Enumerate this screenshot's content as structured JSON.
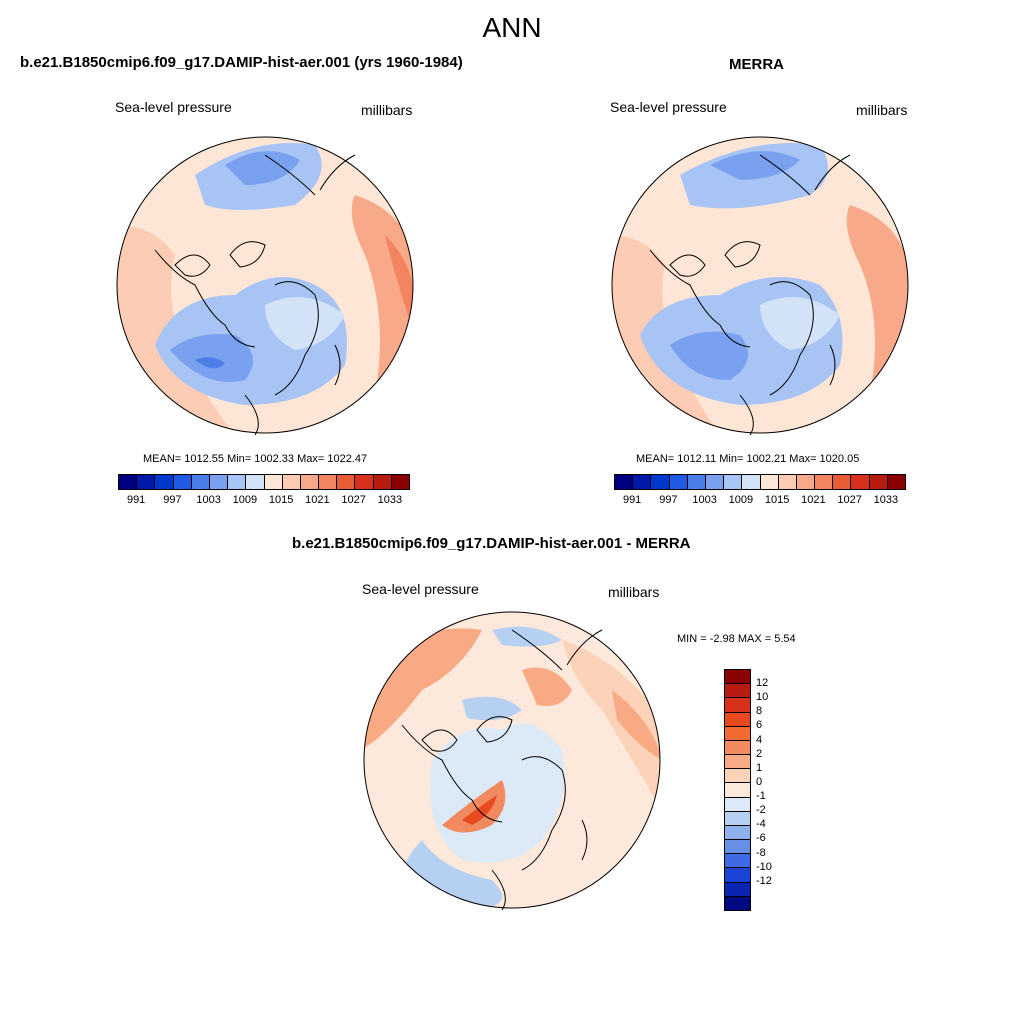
{
  "figure": {
    "title": "ANN"
  },
  "panels": [
    {
      "title": "b.e21.B1850cmip6.f09_g17.DAMIP-hist-aer.001 (yrs 1960-1984)",
      "left_label": "Sea-level pressure",
      "right_label": "millibars",
      "stats": "MEAN= 1012.55  Min= 1002.33  Max= 1022.47"
    },
    {
      "title": "MERRA",
      "left_label": "Sea-level pressure",
      "right_label": "millibars",
      "stats": "MEAN= 1012.11  Min= 1002.21  Max= 1020.05"
    },
    {
      "title": "b.e21.B1850cmip6.f09_g17.DAMIP-hist-aer.001 - MERRA",
      "left_label": "Sea-level pressure",
      "right_label": "millibars",
      "stats": "MIN =  -2.98 MAX =   5.54"
    }
  ],
  "colorbars": {
    "absolute": {
      "colors": [
        "#000080",
        "#0019a8",
        "#0038cc",
        "#1f5be6",
        "#4d7ee8",
        "#7aa0f0",
        "#a8c4f5",
        "#d3e3f7",
        "#fde6d6",
        "#fcccb4",
        "#f8a98a",
        "#f2845f",
        "#e85c35",
        "#d7301b",
        "#b81c10",
        "#8b0000"
      ],
      "tick_labels": [
        "991",
        "997",
        "1003",
        "1009",
        "1015",
        "1021",
        "1027",
        "1033"
      ]
    },
    "difference": {
      "colors": [
        "#8b0000",
        "#b81c10",
        "#d7301b",
        "#e84a20",
        "#f26a30",
        "#f28a5f",
        "#f8aa85",
        "#fcd2b8",
        "#fde9dc",
        "#dceaf8",
        "#b6d0f2",
        "#8fb1ec",
        "#6690e6",
        "#3f6ae6",
        "#1a44d8",
        "#0a26b0",
        "#000a80"
      ],
      "tick_labels": [
        "12",
        "10",
        "8",
        "6",
        "4",
        "2",
        "1",
        "0",
        "-1",
        "-2",
        "-4",
        "-6",
        "-8",
        "-10",
        "-12"
      ]
    }
  },
  "map_colors": {
    "ocean_light_blue": "#d3e3f7",
    "light_blue": "#a8c4f5",
    "mid_blue": "#7aa0f0",
    "dark_blue": "#4d7ee8",
    "peach": "#fde6d6",
    "light_orange": "#fcccb4",
    "orange": "#f8a98a",
    "dark_orange": "#f2845f",
    "red_orange": "#e85c35"
  }
}
